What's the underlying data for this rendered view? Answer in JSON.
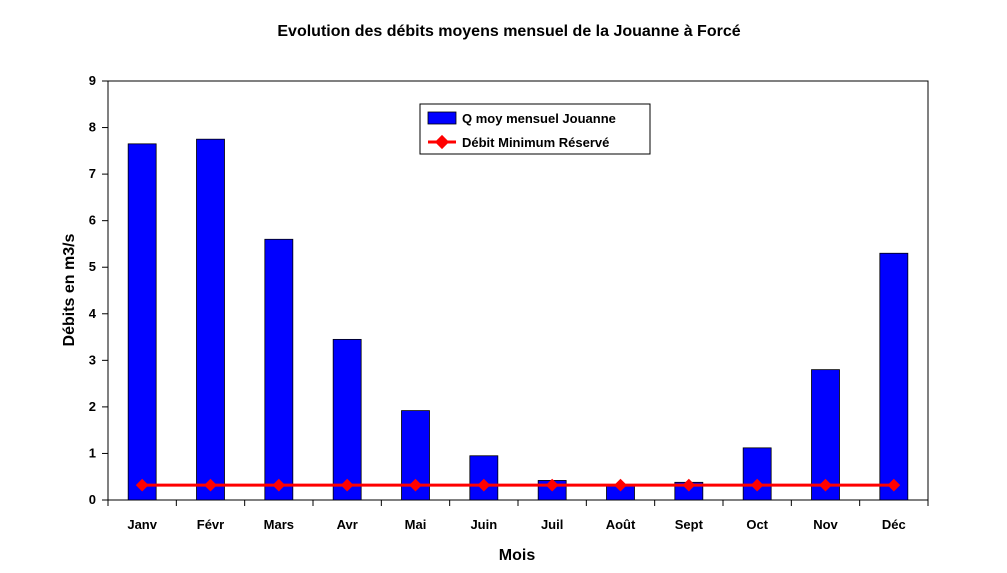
{
  "chart_data": {
    "type": "bar",
    "title": "Evolution des débits moyens mensuel de la Jouanne à Forcé",
    "xlabel": "Mois",
    "ylabel": "Débits en m3/s",
    "ylim": [
      0,
      9
    ],
    "yticks": [
      "0",
      "1",
      "2",
      "3",
      "4",
      "5",
      "6",
      "7",
      "8",
      "9"
    ],
    "categories": [
      "Janv",
      "Févr",
      "Mars",
      "Avr",
      "Mai",
      "Juin",
      "Juil",
      "Août",
      "Sept",
      "Oct",
      "Nov",
      "Déc"
    ],
    "series": [
      {
        "name": "Q moy mensuel Jouanne",
        "type": "bar",
        "color": "#0000ff",
        "values": [
          7.65,
          7.75,
          5.6,
          3.45,
          1.92,
          0.95,
          0.42,
          0.3,
          0.38,
          1.12,
          2.8,
          5.3
        ]
      },
      {
        "name": "Débit Minimum Réservé",
        "type": "line",
        "color": "#ff0000",
        "values": [
          0.32,
          0.32,
          0.32,
          0.32,
          0.32,
          0.32,
          0.32,
          0.32,
          0.32,
          0.32,
          0.32,
          0.32
        ]
      }
    ],
    "grid": false,
    "legend_position": "top-center"
  }
}
